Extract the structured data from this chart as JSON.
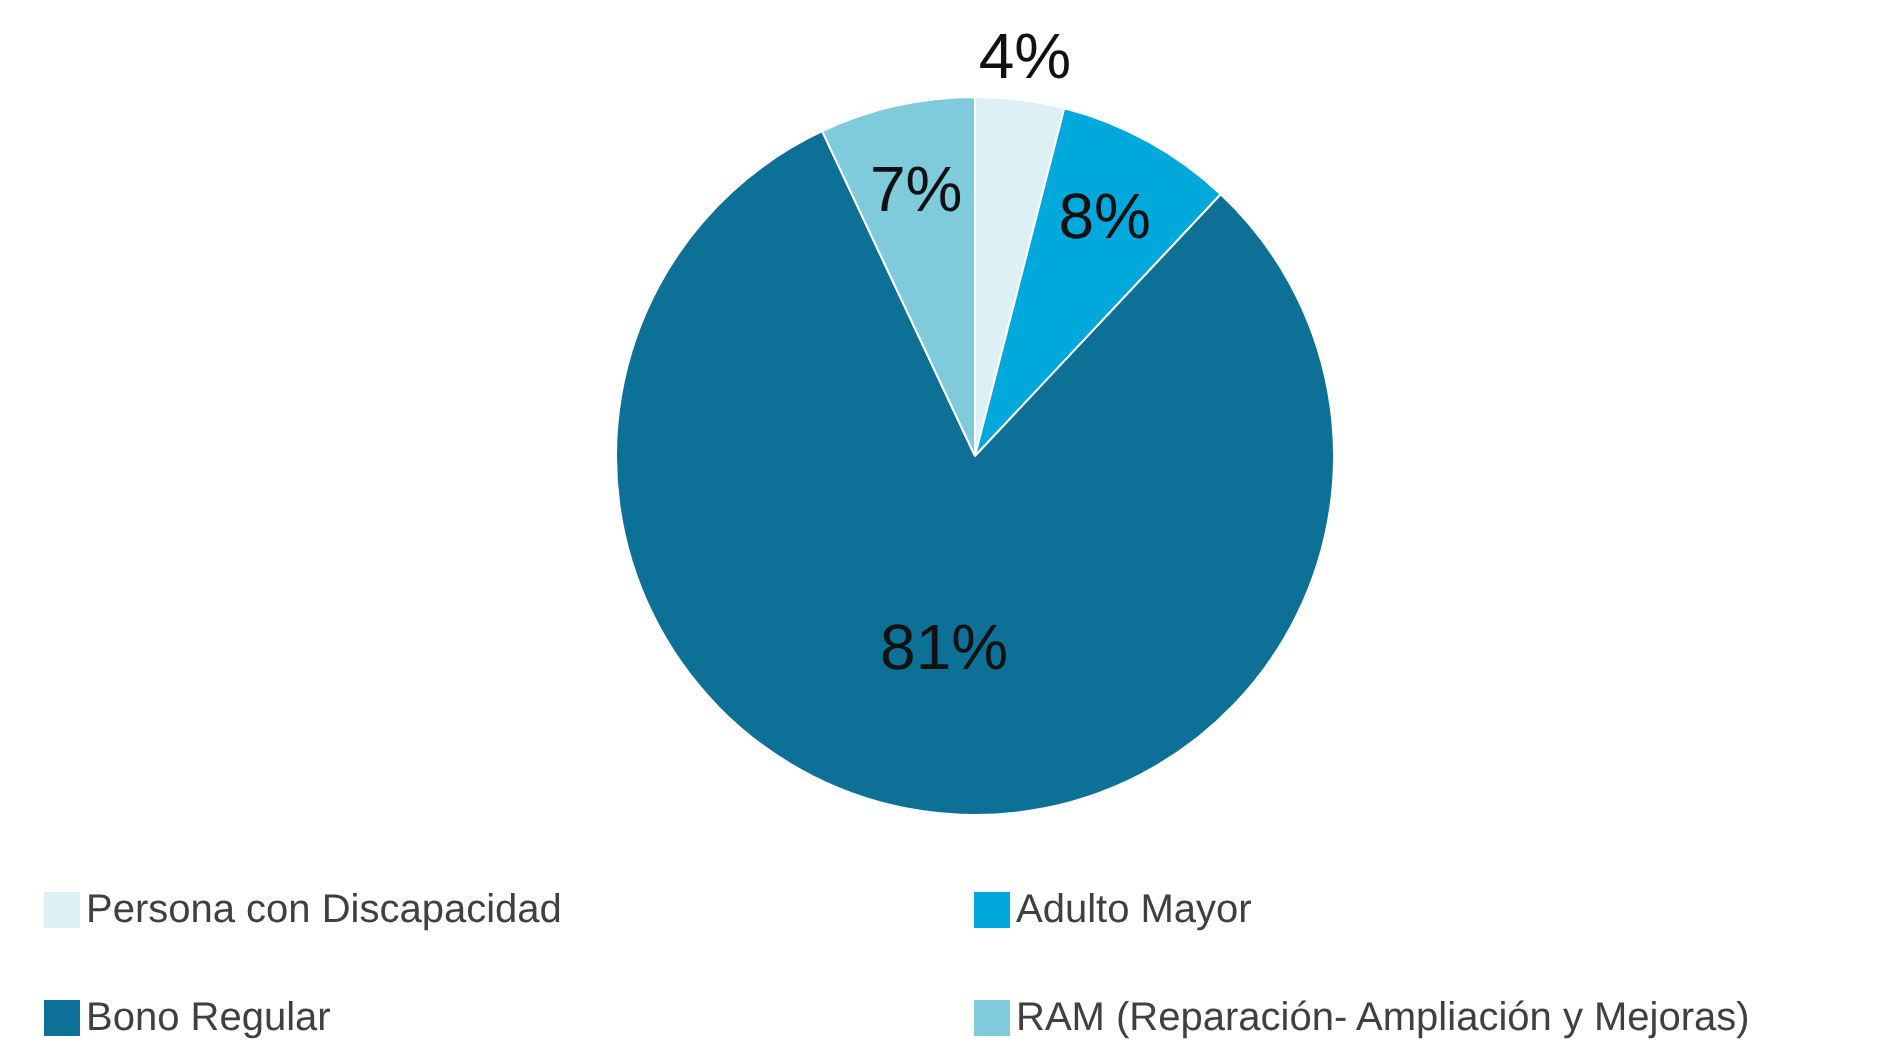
{
  "chart_data": {
    "type": "pie",
    "categories": [
      "Persona con Discapacidad",
      "Adulto Mayor",
      "Bono Regular",
      "RAM (Reparación- Ampliación y Mejoras)"
    ],
    "values": [
      4,
      8,
      81,
      7
    ],
    "colors": [
      "#dcf0f6",
      "#00a8dc",
      "#0d7096",
      "#7fcbdc"
    ],
    "value_labels": [
      "4%",
      "8%",
      "81%",
      "7%"
    ],
    "legend": "bottom"
  }
}
